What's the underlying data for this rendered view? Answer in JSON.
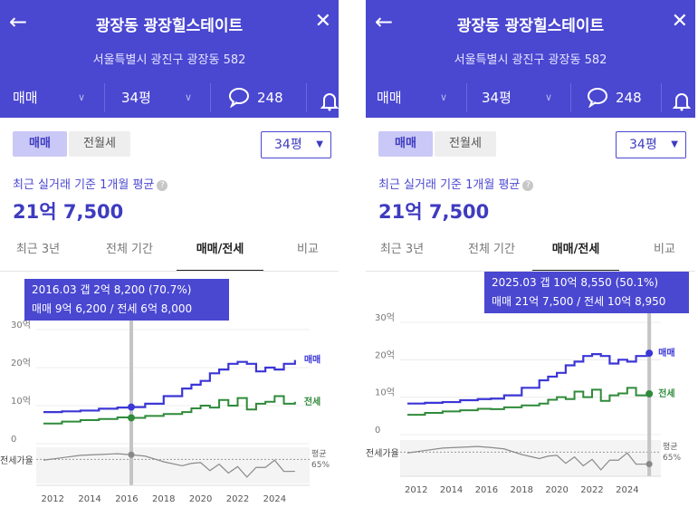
{
  "panels": [
    {
      "header": {
        "title": "광장동 광장힐스테이트",
        "address": "서울특별시 광진구 광장동 582",
        "trade_select": "매매",
        "size_select": "34평",
        "comment_count": "248"
      },
      "segment": {
        "on": "매매",
        "off": "전월세"
      },
      "size_dropdown": "34평",
      "average": {
        "label": "최근 실거래 기준 1개월 평균",
        "value": "21억 7,500"
      },
      "tabs": [
        "최근 3년",
        "전체 기간",
        "매매/전세",
        "비교"
      ],
      "active_tab": "매매/전세",
      "tooltip": {
        "line1": "2016.03  갭 2억 8,200 (70.7%)",
        "line2": "매매 9억 6,200 / 전세 6억 8,000"
      },
      "chart_data": {
        "type": "line",
        "x_ticks": [
          "2012",
          "2014",
          "2016",
          "2018",
          "2020",
          "2022",
          "2024"
        ],
        "y_ticks": [
          "30억",
          "20억",
          "10억",
          "0"
        ],
        "ylim": [
          0,
          30
        ],
        "series": [
          {
            "name": "매매",
            "x": [
              2011.5,
              2012.5,
              2013.5,
              2014.5,
              2015.5,
              2016.25,
              2017,
              2018,
              2019,
              2019.5,
              2020,
              2020.5,
              2021,
              2021.5,
              2022,
              2022.5,
              2023,
              2023.5,
              2024,
              2024.5,
              2025.1
            ],
            "y": [
              8.3,
              8.5,
              8.7,
              9.2,
              9.5,
              9.62,
              10.5,
              12.5,
              14.5,
              15.5,
              16.5,
              18.5,
              19.5,
              21.0,
              21.5,
              21.0,
              19.0,
              20.0,
              19.5,
              21.0,
              22.0
            ]
          },
          {
            "name": "전세",
            "x": [
              2011.5,
              2012.5,
              2013.5,
              2014.5,
              2015.5,
              2016.25,
              2017,
              2018,
              2019,
              2019.5,
              2020,
              2020.5,
              2021,
              2021.5,
              2022,
              2022.5,
              2023,
              2023.5,
              2024,
              2024.5,
              2025.1
            ],
            "y": [
              5.3,
              5.8,
              6.2,
              6.5,
              6.9,
              6.8,
              7.3,
              7.8,
              8.3,
              9.3,
              10.0,
              9.5,
              11.5,
              10.0,
              12.0,
              9.0,
              10.5,
              11.0,
              12.5,
              10.5,
              11.0
            ]
          }
        ],
        "ratio": {
          "label": "전세가율",
          "avg_label": "평균",
          "avg_value": "65%",
          "x": [
            2011.5,
            2012.5,
            2013.5,
            2014.5,
            2015.5,
            2016.25,
            2017,
            2018,
            2019,
            2019.5,
            2020,
            2020.5,
            2021,
            2021.5,
            2022,
            2022.5,
            2023,
            2023.5,
            2024,
            2024.5,
            2025.1
          ],
          "y": [
            64,
            67,
            70,
            71,
            72,
            70.7,
            69,
            62,
            57,
            60,
            61,
            51,
            59,
            48,
            56,
            43,
            55,
            55,
            64,
            50,
            50.1
          ]
        },
        "marker_x": 2016.25
      }
    },
    {
      "header": {
        "title": "광장동 광장힐스테이트",
        "address": "서울특별시 광진구 광장동 582",
        "trade_select": "매매",
        "size_select": "34평",
        "comment_count": "248"
      },
      "segment": {
        "on": "매매",
        "off": "전월세"
      },
      "size_dropdown": "34평",
      "average": {
        "label": "최근 실거래 기준 1개월 평균",
        "value": "21억 7,500"
      },
      "tabs": [
        "최근 3년",
        "전체 기간",
        "매매/전세",
        "비교"
      ],
      "active_tab": "매매/전세",
      "tooltip": {
        "line1": "2025.03  갭 10억 8,550 (50.1%)",
        "line2": "매매 21억 7,500 / 전세 10억 8,950"
      },
      "chart_data": {
        "type": "line",
        "x_ticks": [
          "2012",
          "2014",
          "2016",
          "2018",
          "2020",
          "2022",
          "2024"
        ],
        "y_ticks": [
          "30억",
          "20억",
          "10억",
          "0"
        ],
        "ylim": [
          0,
          30
        ],
        "series": [
          {
            "name": "매매",
            "x": [
              2011.5,
              2012.5,
              2013.5,
              2014.5,
              2015.5,
              2016.25,
              2017,
              2018,
              2019,
              2019.5,
              2020,
              2020.5,
              2021,
              2021.5,
              2022,
              2022.5,
              2023,
              2023.5,
              2024,
              2024.5,
              2025.25
            ],
            "y": [
              8.3,
              8.5,
              8.7,
              9.2,
              9.5,
              9.62,
              10.5,
              12.5,
              14.5,
              15.5,
              16.5,
              18.5,
              19.5,
              21.0,
              21.5,
              21.0,
              19.0,
              20.0,
              19.5,
              21.0,
              21.75
            ]
          },
          {
            "name": "전세",
            "x": [
              2011.5,
              2012.5,
              2013.5,
              2014.5,
              2015.5,
              2016.25,
              2017,
              2018,
              2019,
              2019.5,
              2020,
              2020.5,
              2021,
              2021.5,
              2022,
              2022.5,
              2023,
              2023.5,
              2024,
              2024.5,
              2025.25
            ],
            "y": [
              5.3,
              5.8,
              6.2,
              6.5,
              6.9,
              6.8,
              7.3,
              7.8,
              8.3,
              9.3,
              10.0,
              9.5,
              11.5,
              10.0,
              12.0,
              9.0,
              10.5,
              11.0,
              12.5,
              10.5,
              10.9
            ]
          }
        ],
        "ratio": {
          "label": "전세가율",
          "avg_label": "평균",
          "avg_value": "65%",
          "x": [
            2011.5,
            2012.5,
            2013.5,
            2014.5,
            2015.5,
            2016.25,
            2017,
            2018,
            2019,
            2019.5,
            2020,
            2020.5,
            2021,
            2021.5,
            2022,
            2022.5,
            2023,
            2023.5,
            2024,
            2024.5,
            2025.25
          ],
          "y": [
            64,
            67,
            70,
            71,
            72,
            70.7,
            69,
            62,
            57,
            60,
            61,
            51,
            59,
            48,
            56,
            43,
            55,
            55,
            64,
            50,
            50.1
          ]
        },
        "marker_x": 2025.25
      }
    }
  ],
  "colors": {
    "header": "#4a47d1",
    "sale": "#3b36d6",
    "jeonse": "#2f8a3a",
    "ratio": "#8a8a8a"
  }
}
